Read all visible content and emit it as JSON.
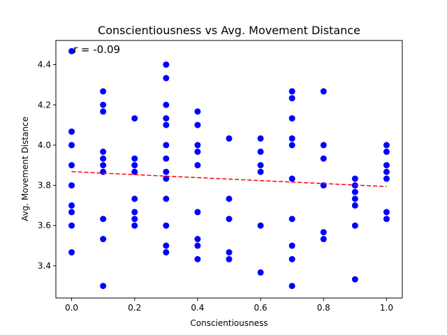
{
  "chart_data": {
    "type": "scatter",
    "title": "Conscientiousness vs Avg. Movement Distance",
    "xlabel": "Conscientiousness",
    "ylabel": "Avg. Movement Distance",
    "annotation": "r = -0.09",
    "xlim": [
      -0.05,
      1.05
    ],
    "ylim": [
      3.24,
      4.52
    ],
    "xticks": [
      0.0,
      0.2,
      0.4,
      0.6,
      0.8,
      1.0
    ],
    "xtick_labels": [
      "0.0",
      "0.2",
      "0.4",
      "0.6",
      "0.8",
      "1.0"
    ],
    "yticks": [
      3.4,
      3.6,
      3.8,
      4.0,
      4.2,
      4.4
    ],
    "ytick_labels": [
      "3.4",
      "3.6",
      "3.8",
      "4.0",
      "4.2",
      "4.4"
    ],
    "grid": false,
    "marker_color": "#0000ff",
    "trend_color": "#ff0000",
    "trend_line": {
      "x": [
        0.0,
        1.0
      ],
      "y": [
        3.868,
        3.794
      ]
    },
    "points": [
      [
        0.0,
        4.467
      ],
      [
        0.0,
        4.067
      ],
      [
        0.0,
        4.0
      ],
      [
        0.0,
        3.9
      ],
      [
        0.0,
        3.8
      ],
      [
        0.0,
        3.7
      ],
      [
        0.0,
        3.667
      ],
      [
        0.0,
        3.6
      ],
      [
        0.0,
        3.467
      ],
      [
        0.1,
        4.267
      ],
      [
        0.1,
        4.2
      ],
      [
        0.1,
        4.167
      ],
      [
        0.1,
        3.967
      ],
      [
        0.1,
        3.933
      ],
      [
        0.1,
        3.9
      ],
      [
        0.1,
        3.867
      ],
      [
        0.1,
        3.633
      ],
      [
        0.1,
        3.533
      ],
      [
        0.1,
        3.3
      ],
      [
        0.2,
        4.133
      ],
      [
        0.2,
        3.933
      ],
      [
        0.2,
        3.9
      ],
      [
        0.2,
        3.867
      ],
      [
        0.2,
        3.733
      ],
      [
        0.2,
        3.667
      ],
      [
        0.2,
        3.633
      ],
      [
        0.2,
        3.6
      ],
      [
        0.3,
        4.4
      ],
      [
        0.3,
        4.333
      ],
      [
        0.3,
        4.2
      ],
      [
        0.3,
        4.133
      ],
      [
        0.3,
        4.1
      ],
      [
        0.3,
        4.0
      ],
      [
        0.3,
        3.933
      ],
      [
        0.3,
        3.867
      ],
      [
        0.3,
        3.833
      ],
      [
        0.3,
        3.733
      ],
      [
        0.3,
        3.6
      ],
      [
        0.3,
        3.5
      ],
      [
        0.3,
        3.467
      ],
      [
        0.4,
        4.167
      ],
      [
        0.4,
        4.1
      ],
      [
        0.4,
        4.0
      ],
      [
        0.4,
        3.967
      ],
      [
        0.4,
        3.9
      ],
      [
        0.4,
        3.667
      ],
      [
        0.4,
        3.533
      ],
      [
        0.4,
        3.5
      ],
      [
        0.4,
        3.433
      ],
      [
        0.5,
        4.033
      ],
      [
        0.5,
        3.733
      ],
      [
        0.5,
        3.633
      ],
      [
        0.5,
        3.467
      ],
      [
        0.5,
        3.433
      ],
      [
        0.6,
        4.033
      ],
      [
        0.6,
        3.967
      ],
      [
        0.6,
        3.9
      ],
      [
        0.6,
        3.867
      ],
      [
        0.6,
        3.6
      ],
      [
        0.6,
        3.367
      ],
      [
        0.7,
        4.267
      ],
      [
        0.7,
        4.233
      ],
      [
        0.7,
        4.133
      ],
      [
        0.7,
        4.033
      ],
      [
        0.7,
        4.0
      ],
      [
        0.7,
        3.833
      ],
      [
        0.7,
        3.633
      ],
      [
        0.7,
        3.5
      ],
      [
        0.7,
        3.433
      ],
      [
        0.7,
        3.3
      ],
      [
        0.8,
        4.267
      ],
      [
        0.8,
        4.0
      ],
      [
        0.8,
        3.933
      ],
      [
        0.8,
        3.8
      ],
      [
        0.8,
        3.567
      ],
      [
        0.8,
        3.533
      ],
      [
        0.9,
        3.833
      ],
      [
        0.9,
        3.8
      ],
      [
        0.9,
        3.767
      ],
      [
        0.9,
        3.733
      ],
      [
        0.9,
        3.7
      ],
      [
        0.9,
        3.6
      ],
      [
        0.9,
        3.333
      ],
      [
        1.0,
        4.0
      ],
      [
        1.0,
        3.967
      ],
      [
        1.0,
        3.9
      ],
      [
        1.0,
        3.867
      ],
      [
        1.0,
        3.833
      ],
      [
        1.0,
        3.667
      ],
      [
        1.0,
        3.633
      ]
    ]
  }
}
